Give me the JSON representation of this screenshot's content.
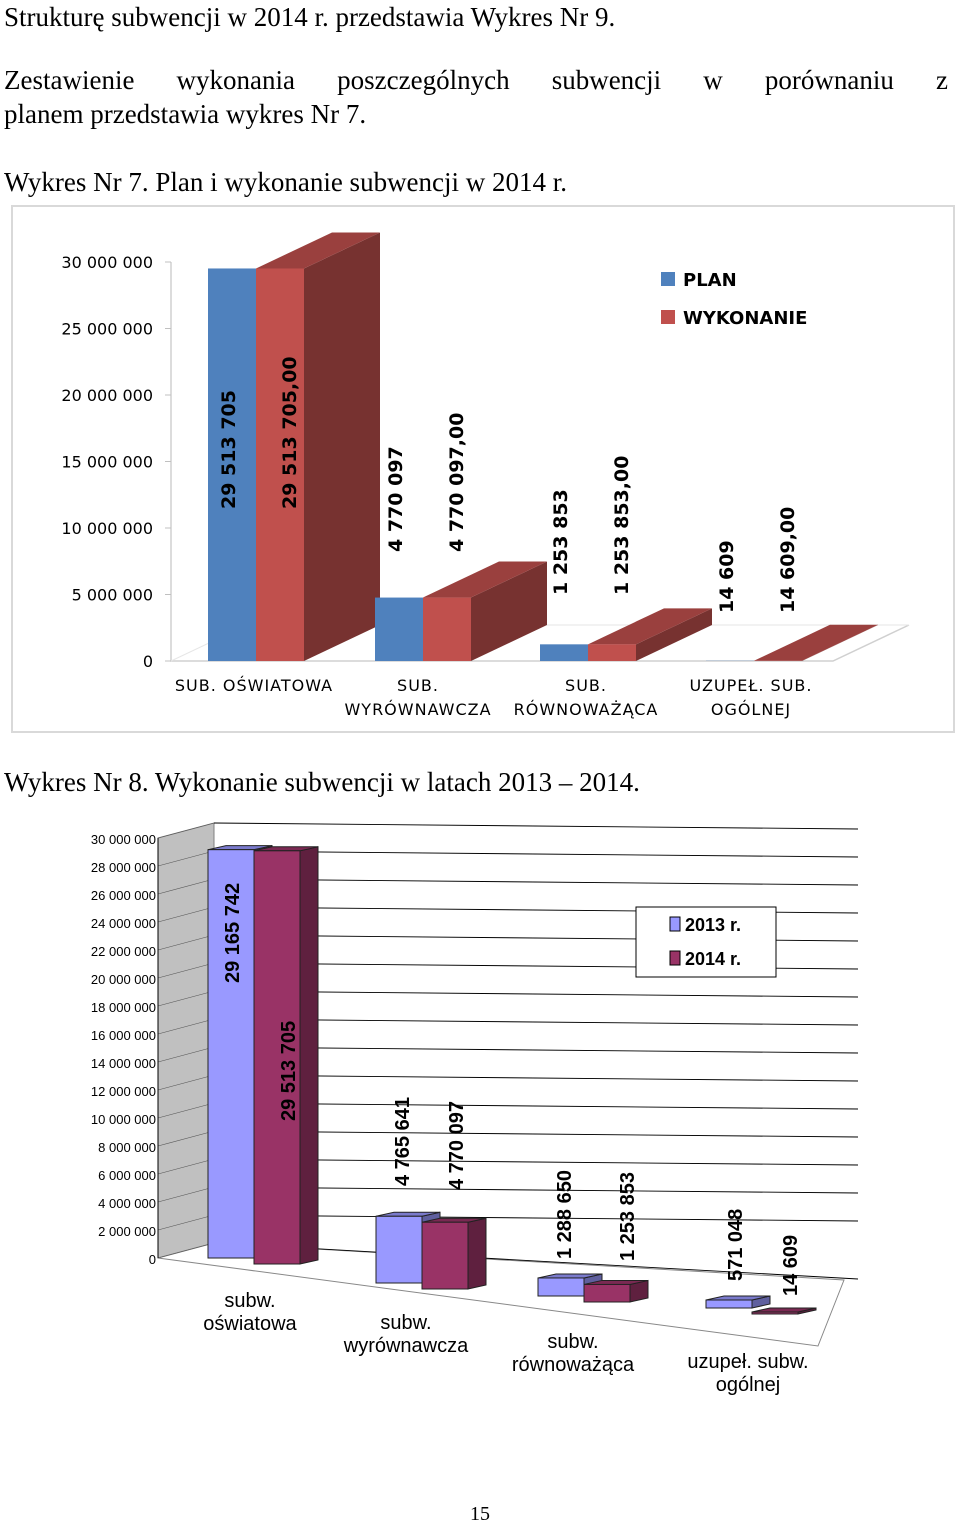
{
  "text": {
    "line1": "Strukturę subwencji w 2014 r. przedstawia Wykres Nr 9.",
    "para_line1": "Zestawienie wykonania poszczególnych subwencji w porównaniu z",
    "para_line2": "planem przedstawia wykres Nr 7.",
    "chart7_caption": "Wykres Nr 7. Plan i wykonanie subwencji w 2014 r.",
    "chart8_caption": "Wykres Nr 8. Wykonanie subwencji w latach 2013 – 2014.",
    "page_number": "15"
  },
  "chart_data": [
    {
      "type": "bar",
      "title": "Wykres Nr 7. Plan i wykonanie subwencji w 2014 r.",
      "categories": [
        [
          "SUB. OŚWIATOWA"
        ],
        [
          "SUB.",
          "WYRÓWNAWCZA"
        ],
        [
          "SUB.",
          "RÓWNOWAŻĄCA"
        ],
        [
          "UZUPEŁ. SUB.",
          "OGÓLNEJ"
        ]
      ],
      "series": [
        {
          "name": "PLAN",
          "color": "#4f81bd",
          "values": [
            29513705,
            4770097,
            1253853,
            14609
          ],
          "labels": [
            "29 513 705",
            "4 770 097",
            "1 253 853",
            "14 609"
          ]
        },
        {
          "name": "WYKONANIE",
          "color": "#c0504d",
          "values": [
            29513705,
            4770097,
            1253853,
            14609
          ],
          "labels": [
            "29 513 705,00",
            "4 770 097,00",
            "1 253 853,00",
            "14 609,00"
          ]
        }
      ],
      "ylim": [
        0,
        30000000
      ],
      "yticks": [
        0,
        5000000,
        10000000,
        15000000,
        20000000,
        25000000,
        30000000
      ],
      "ytick_labels": [
        "0",
        "5 000 000",
        "10 000 000",
        "15 000 000",
        "20 000 000",
        "25 000 000",
        "30 000 000"
      ],
      "legend_position": "top-right",
      "grid": false
    },
    {
      "type": "bar",
      "title": "Wykres Nr 8. Wykonanie subwencji w latach 2013 – 2014.",
      "categories": [
        [
          "subw.",
          "oświatowa"
        ],
        [
          "subw.",
          "wyrównawcza"
        ],
        [
          "subw.",
          "równoważąca"
        ],
        [
          "uzupeł. subw.",
          "ogólnej"
        ]
      ],
      "series": [
        {
          "name": "2013 r.",
          "color": "#9999ff",
          "values": [
            29165742,
            4765641,
            1288650,
            571048
          ],
          "labels": [
            "29 165 742",
            "4 765 641",
            "1 288 650",
            "571 048"
          ]
        },
        {
          "name": "2014 r.",
          "color": "#993366",
          "values": [
            29513705,
            4770097,
            1253853,
            14609
          ],
          "labels": [
            "29 513 705",
            "4 770 097",
            "1 253 853",
            "14 609"
          ]
        }
      ],
      "ylim": [
        0,
        30000000
      ],
      "yticks": [
        0,
        2000000,
        4000000,
        6000000,
        8000000,
        10000000,
        12000000,
        14000000,
        16000000,
        18000000,
        20000000,
        22000000,
        24000000,
        26000000,
        28000000,
        30000000
      ],
      "ytick_labels": [
        "0",
        "2 000 000",
        "4 000 000",
        "6 000 000",
        "8 000 000",
        "10 000 000",
        "12 000 000",
        "14 000 000",
        "16 000 000",
        "18 000 000",
        "20 000 000",
        "22 000 000",
        "24 000 000",
        "26 000 000",
        "28 000 000",
        "30 000 000"
      ],
      "legend_position": "top-right",
      "grid": true
    }
  ]
}
